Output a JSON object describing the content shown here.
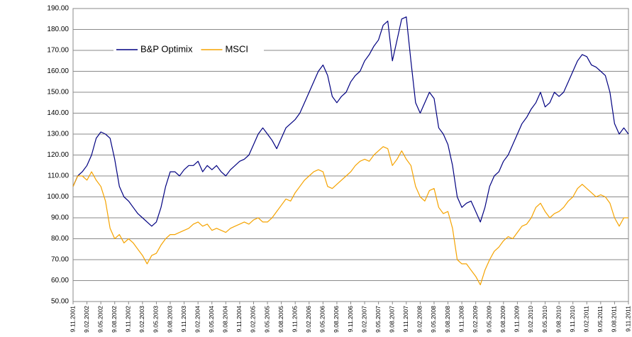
{
  "chart_data": {
    "type": "line",
    "categories": [
      "9.11.2001",
      null,
      null,
      "9.02.2002",
      null,
      null,
      "9.05.2002",
      null,
      null,
      "9.08.2002",
      null,
      null,
      "9.11.2002",
      null,
      null,
      "9.02.2003",
      null,
      null,
      "9.05.2003",
      null,
      null,
      "9.08.2003",
      null,
      null,
      "9.11.2003",
      null,
      null,
      "9.02.2004",
      null,
      null,
      "9.05.2004",
      null,
      null,
      "9.08.2004",
      null,
      null,
      "9.11.2004",
      null,
      null,
      "9.02.2005",
      null,
      null,
      "9.05.2005",
      null,
      null,
      "9.08.2005",
      null,
      null,
      "9.11.2005",
      null,
      null,
      "9.02.2006",
      null,
      null,
      "9.05.2006",
      null,
      null,
      "9.08.2006",
      null,
      null,
      "9.11.2006",
      null,
      null,
      "9.02.2007",
      null,
      null,
      "9.05.2007",
      null,
      null,
      "9.08.2007",
      null,
      null,
      "9.11.2007",
      null,
      null,
      "9.02.2008",
      null,
      null,
      "9.05.2008",
      null,
      null,
      "9.08.2008",
      null,
      null,
      "9.11.2008",
      null,
      null,
      "9.02.2009",
      null,
      null,
      "9.05.2009",
      null,
      null,
      "9.08.2009",
      null,
      null,
      "9.11.2009",
      null,
      null,
      "9.02.2010",
      null,
      null,
      "9.05.2010",
      null,
      null,
      "9.08.2010",
      null,
      null,
      "9.11.2010",
      null,
      null,
      "9.02.2011",
      null,
      null,
      "9.05.2011",
      null,
      null,
      "9.08.2011",
      null,
      null,
      "9.11.2011"
    ],
    "series": [
      {
        "name": "B&P Optimix",
        "color": "#000080",
        "values": [
          105,
          110,
          112,
          115,
          120,
          128,
          131,
          130,
          128,
          118,
          105,
          100,
          98,
          95,
          92,
          90,
          88,
          86,
          88,
          95,
          105,
          112,
          112,
          110,
          113,
          115,
          115,
          117,
          112,
          115,
          113,
          115,
          112,
          110,
          113,
          115,
          117,
          118,
          120,
          125,
          130,
          133,
          130,
          127,
          123,
          128,
          133,
          135,
          137,
          140,
          145,
          150,
          155,
          160,
          163,
          158,
          148,
          145,
          148,
          150,
          155,
          158,
          160,
          165,
          168,
          172,
          175,
          182,
          184,
          165,
          175,
          185,
          186,
          165,
          145,
          140,
          145,
          150,
          147,
          133,
          130,
          125,
          115,
          100,
          95,
          97,
          98,
          93,
          88,
          95,
          105,
          110,
          112,
          117,
          120,
          125,
          130,
          135,
          138,
          142,
          145,
          150,
          143,
          145,
          150,
          148,
          150,
          155,
          160,
          165,
          168,
          167,
          163,
          162,
          160,
          158,
          150,
          135,
          130,
          133,
          130
        ]
      },
      {
        "name": "MSCI",
        "color": "#f5a300",
        "values": [
          105,
          110,
          110,
          108,
          112,
          108,
          105,
          98,
          85,
          80,
          82,
          78,
          80,
          78,
          75,
          72,
          68,
          72,
          73,
          77,
          80,
          82,
          82,
          83,
          84,
          85,
          87,
          88,
          86,
          87,
          84,
          85,
          84,
          83,
          85,
          86,
          87,
          88,
          87,
          89,
          90,
          88,
          88,
          90,
          93,
          96,
          99,
          98,
          102,
          105,
          108,
          110,
          112,
          113,
          112,
          105,
          104,
          106,
          108,
          110,
          112,
          115,
          117,
          118,
          117,
          120,
          122,
          124,
          123,
          115,
          118,
          122,
          118,
          115,
          105,
          100,
          98,
          103,
          104,
          95,
          92,
          93,
          85,
          70,
          68,
          68,
          65,
          62,
          58,
          65,
          70,
          74,
          76,
          79,
          81,
          80,
          83,
          86,
          87,
          90,
          95,
          97,
          93,
          90,
          92,
          93,
          95,
          98,
          100,
          104,
          106,
          104,
          102,
          100,
          101,
          100,
          97,
          90,
          86,
          90,
          90
        ]
      }
    ],
    "ylim": [
      50,
      190
    ],
    "yticks": [
      {
        "value": 50,
        "label": "50.00"
      },
      {
        "value": 60,
        "label": "60.00"
      },
      {
        "value": 70,
        "label": "70.00"
      },
      {
        "value": 80,
        "label": "80.00"
      },
      {
        "value": 90,
        "label": "90.00"
      },
      {
        "value": 100,
        "label": "100.00"
      },
      {
        "value": 110,
        "label": "110.00"
      },
      {
        "value": 120,
        "label": "120.00"
      },
      {
        "value": 130,
        "label": "130.00"
      },
      {
        "value": 140,
        "label": "140.00"
      },
      {
        "value": 150,
        "label": "150.00"
      },
      {
        "value": 160,
        "label": "160.00"
      },
      {
        "value": 170,
        "label": "170.00"
      },
      {
        "value": 180,
        "label": "180.00"
      },
      {
        "value": 190,
        "label": "190.00"
      }
    ],
    "grid": true,
    "legend": "top-left"
  }
}
